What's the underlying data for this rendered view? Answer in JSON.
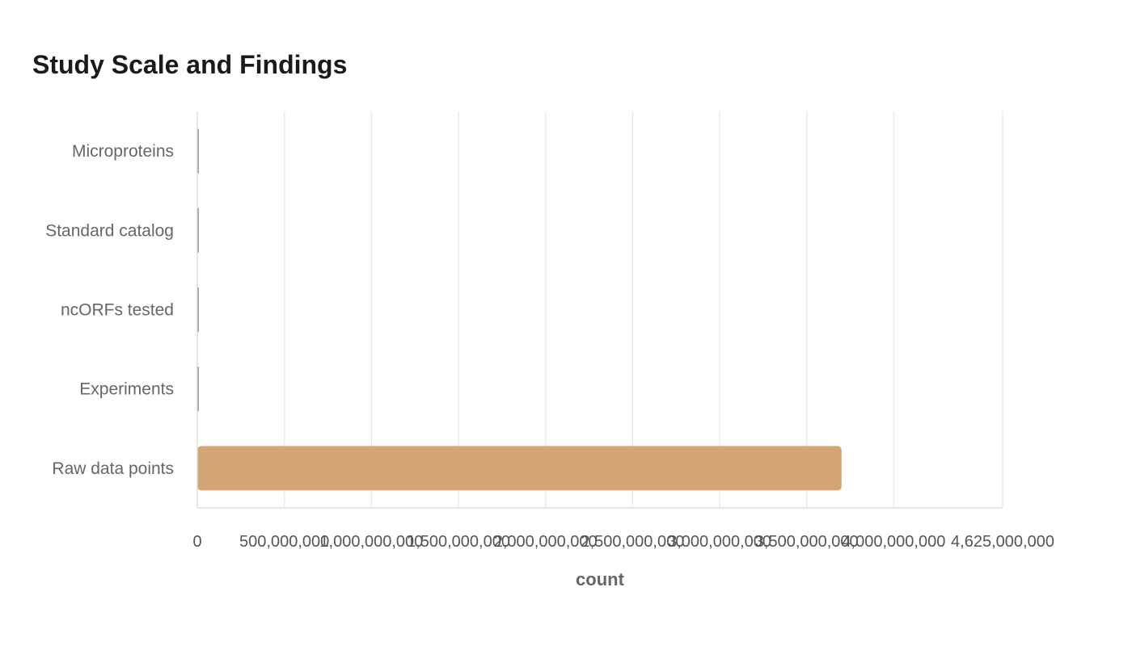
{
  "chart_data": {
    "type": "bar",
    "orientation": "horizontal",
    "title": "Study Scale and Findings",
    "xlabel": "count",
    "ylabel": "",
    "categories": [
      "Microproteins",
      "Standard catalog",
      "ncORFs tested",
      "Experiments",
      "Raw data points"
    ],
    "values": [
      100,
      100,
      100,
      100,
      3700000000
    ],
    "xlim": [
      0,
      4625000000
    ],
    "xticks": [
      0,
      500000000,
      1000000000,
      1500000000,
      2000000000,
      2500000000,
      3000000000,
      3500000000,
      4000000000,
      4625000000
    ],
    "xtick_labels": [
      "0",
      "500,000,000",
      "1,000,000,000",
      "1,500,000,000",
      "2,000,000,000",
      "2,500,000,000",
      "3,000,000,000",
      "3,500,000,000",
      "4,000,000,000",
      "4,625,000,000"
    ],
    "grid": true,
    "legend": "none",
    "colors": {
      "bar": "#d4a574",
      "small_bar": "#4a4a4a",
      "grid": "#ebebeb",
      "axis": "#dddddd"
    }
  }
}
